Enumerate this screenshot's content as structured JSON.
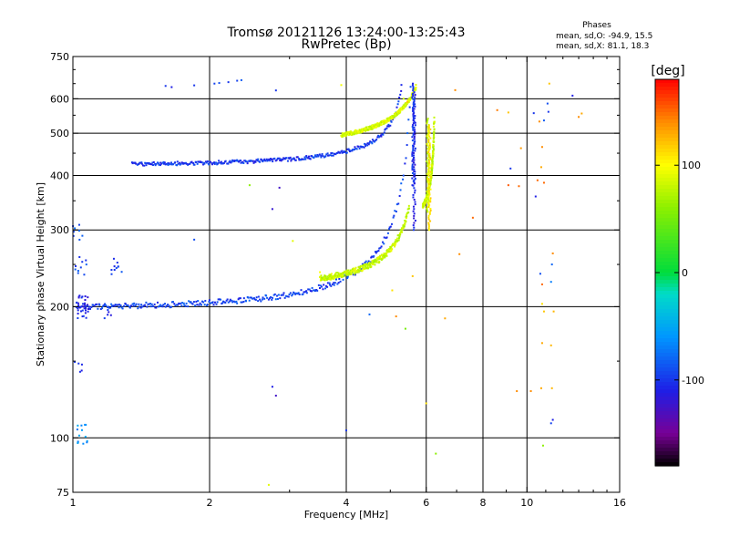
{
  "chart_data": {
    "type": "scatter",
    "title": "Tromsø 20121126 13:24:00-13:25:43",
    "subtitle": "RwPretec (Bp)",
    "info": {
      "heading": "Phases",
      "line1": "mean, sd,O: -94.9, 15.5",
      "line2": "mean, sd,X:  81.1, 18.3"
    },
    "xlabel": "Frequency [MHz]",
    "ylabel": "Stationary phase Virtual Height [km]",
    "x_scale": "log",
    "y_scale": "log",
    "xlim": [
      1,
      16
    ],
    "ylim": [
      75,
      750
    ],
    "x_ticks": [
      1,
      2,
      4,
      6,
      8,
      10,
      16
    ],
    "x_tick_labels": [
      "1",
      "2",
      "4",
      "6",
      "8",
      "10",
      "16"
    ],
    "x_gridlines": [
      2,
      4,
      6,
      8,
      10
    ],
    "x_minor_ticks": [
      3,
      5,
      7,
      9,
      11,
      12,
      13,
      14,
      15
    ],
    "y_ticks": [
      75,
      100,
      200,
      300,
      400,
      500,
      600,
      750
    ],
    "y_tick_labels": [
      "75",
      "100",
      "200",
      "300",
      "400",
      "500",
      "600",
      "750"
    ],
    "y_gridlines": [
      100,
      200,
      300,
      400,
      500,
      600
    ],
    "y_minor_ticks": [
      150,
      250,
      350,
      450,
      550,
      650,
      700
    ],
    "grid": true,
    "colorbar": {
      "label": "[deg]",
      "range": [
        -180,
        180
      ],
      "ticks": [
        100,
        0,
        -100
      ],
      "tick_labels": [
        "100",
        "0",
        "-100"
      ]
    },
    "traces": [
      {
        "name": "",
        "f_start": 1.02,
        "f_end": 5.55,
        "h_start": 200,
        "h_end": 640,
        "cutoff": 5.75,
        "phase": -95,
        "jitter": 0.03
      },
      {
        "name": "",
        "f_start": 3.5,
        "f_end": 5.5,
        "h_start": 232,
        "h_end": 340,
        "cutoff": 5.85,
        "phase": 80,
        "jitter": 0.03
      },
      {
        "name": "",
        "f_start": 1.35,
        "f_end": 5.3,
        "h_start": 425,
        "h_end": 650,
        "cutoff": 5.5,
        "phase": -100,
        "jitter": 0.02
      },
      {
        "name": "",
        "f_start": 3.9,
        "f_end": 5.7,
        "h_start": 495,
        "h_end": 640,
        "cutoff": 6.3,
        "phase": 85,
        "jitter": 0.02
      },
      {
        "name": "",
        "f_start": 5.9,
        "f_end": 6.25,
        "h_start": 340,
        "h_end": 540,
        "cutoff": 6.3,
        "phase": 80,
        "jitter": 0.02
      }
    ],
    "clusters": [
      {
        "f": 1.02,
        "h": 300,
        "count": 12,
        "phase": -85
      },
      {
        "f": 1.04,
        "h": 250,
        "count": 10,
        "phase": -95
      },
      {
        "f": 1.05,
        "h": 200,
        "count": 30,
        "phase": -110
      },
      {
        "f": 1.03,
        "h": 143,
        "count": 6,
        "phase": -100
      },
      {
        "f": 1.05,
        "h": 103,
        "count": 14,
        "phase": -60
      },
      {
        "f": 1.25,
        "h": 245,
        "count": 10,
        "phase": -100
      },
      {
        "f": 1.18,
        "h": 195,
        "count": 6,
        "phase": -100
      }
    ],
    "scatter": [
      {
        "f": 1.6,
        "h": 642,
        "phase": -100
      },
      {
        "f": 1.65,
        "h": 638,
        "phase": -110
      },
      {
        "f": 1.85,
        "h": 644,
        "phase": -100
      },
      {
        "f": 2.05,
        "h": 650,
        "phase": -95
      },
      {
        "f": 2.1,
        "h": 652,
        "phase": -90
      },
      {
        "f": 2.2,
        "h": 655,
        "phase": -100
      },
      {
        "f": 2.3,
        "h": 660,
        "phase": -95
      },
      {
        "f": 2.35,
        "h": 662,
        "phase": -85
      },
      {
        "f": 2.45,
        "h": 380,
        "phase": 60
      },
      {
        "f": 2.75,
        "h": 335,
        "phase": -120
      },
      {
        "f": 2.8,
        "h": 627,
        "phase": -100
      },
      {
        "f": 2.85,
        "h": 375,
        "phase": -125
      },
      {
        "f": 2.7,
        "h": 78,
        "phase": 90
      },
      {
        "f": 2.75,
        "h": 131,
        "phase": -110
      },
      {
        "f": 2.8,
        "h": 125,
        "phase": -125
      },
      {
        "f": 1.85,
        "h": 285,
        "phase": -90
      },
      {
        "f": 3.05,
        "h": 283,
        "phase": 90
      },
      {
        "f": 3.5,
        "h": 240,
        "phase": 100
      },
      {
        "f": 3.9,
        "h": 645,
        "phase": 95
      },
      {
        "f": 4.0,
        "h": 104,
        "phase": -100
      },
      {
        "f": 4.5,
        "h": 192,
        "phase": -80
      },
      {
        "f": 5.05,
        "h": 218,
        "phase": 110
      },
      {
        "f": 5.15,
        "h": 190,
        "phase": 140
      },
      {
        "f": 5.4,
        "h": 178,
        "phase": 50
      },
      {
        "f": 5.6,
        "h": 235,
        "phase": 120
      },
      {
        "f": 6.0,
        "h": 120,
        "phase": 110
      },
      {
        "f": 6.3,
        "h": 92,
        "phase": 60
      },
      {
        "f": 6.6,
        "h": 188,
        "phase": 130
      },
      {
        "f": 6.95,
        "h": 628,
        "phase": 140
      },
      {
        "f": 7.1,
        "h": 264,
        "phase": 140
      },
      {
        "f": 7.6,
        "h": 320,
        "phase": 150
      },
      {
        "f": 8.6,
        "h": 565,
        "phase": 145
      },
      {
        "f": 9.1,
        "h": 558,
        "phase": 120
      },
      {
        "f": 9.2,
        "h": 415,
        "phase": -100
      },
      {
        "f": 9.1,
        "h": 380,
        "phase": 155
      },
      {
        "f": 9.6,
        "h": 378,
        "phase": 150
      },
      {
        "f": 9.7,
        "h": 462,
        "phase": 135
      },
      {
        "f": 9.5,
        "h": 128,
        "phase": 140
      },
      {
        "f": 10.2,
        "h": 128,
        "phase": 140
      },
      {
        "f": 10.35,
        "h": 556,
        "phase": -100
      },
      {
        "f": 10.45,
        "h": 358,
        "phase": -110
      },
      {
        "f": 10.55,
        "h": 390,
        "phase": 150
      },
      {
        "f": 10.75,
        "h": 418,
        "phase": 130
      },
      {
        "f": 10.65,
        "h": 532,
        "phase": 140
      },
      {
        "f": 10.8,
        "h": 465,
        "phase": 140
      },
      {
        "f": 10.9,
        "h": 535,
        "phase": -85
      },
      {
        "f": 10.9,
        "h": 385,
        "phase": 150
      },
      {
        "f": 10.7,
        "h": 238,
        "phase": -90
      },
      {
        "f": 10.8,
        "h": 225,
        "phase": 150
      },
      {
        "f": 10.8,
        "h": 203,
        "phase": 110
      },
      {
        "f": 10.9,
        "h": 195,
        "phase": 120
      },
      {
        "f": 10.8,
        "h": 165,
        "phase": 130
      },
      {
        "f": 10.85,
        "h": 96,
        "phase": 60
      },
      {
        "f": 10.75,
        "h": 130,
        "phase": 130
      },
      {
        "f": 11.4,
        "h": 265,
        "phase": 140
      },
      {
        "f": 11.35,
        "h": 250,
        "phase": -80
      },
      {
        "f": 11.3,
        "h": 228,
        "phase": -70
      },
      {
        "f": 11.45,
        "h": 195,
        "phase": 125
      },
      {
        "f": 11.3,
        "h": 163,
        "phase": 125
      },
      {
        "f": 11.35,
        "h": 130,
        "phase": 125
      },
      {
        "f": 11.4,
        "h": 110,
        "phase": -110
      },
      {
        "f": 11.3,
        "h": 108,
        "phase": -95
      },
      {
        "f": 11.1,
        "h": 585,
        "phase": -90
      },
      {
        "f": 11.15,
        "h": 560,
        "phase": -100
      },
      {
        "f": 11.2,
        "h": 650,
        "phase": 120
      },
      {
        "f": 12.6,
        "h": 610,
        "phase": -110
      },
      {
        "f": 13.0,
        "h": 545,
        "phase": 140
      },
      {
        "f": 13.2,
        "h": 555,
        "phase": 130
      },
      {
        "f": 5.35,
        "h": 600,
        "phase": 80
      },
      {
        "f": 5.45,
        "h": 590,
        "phase": 120
      }
    ]
  }
}
